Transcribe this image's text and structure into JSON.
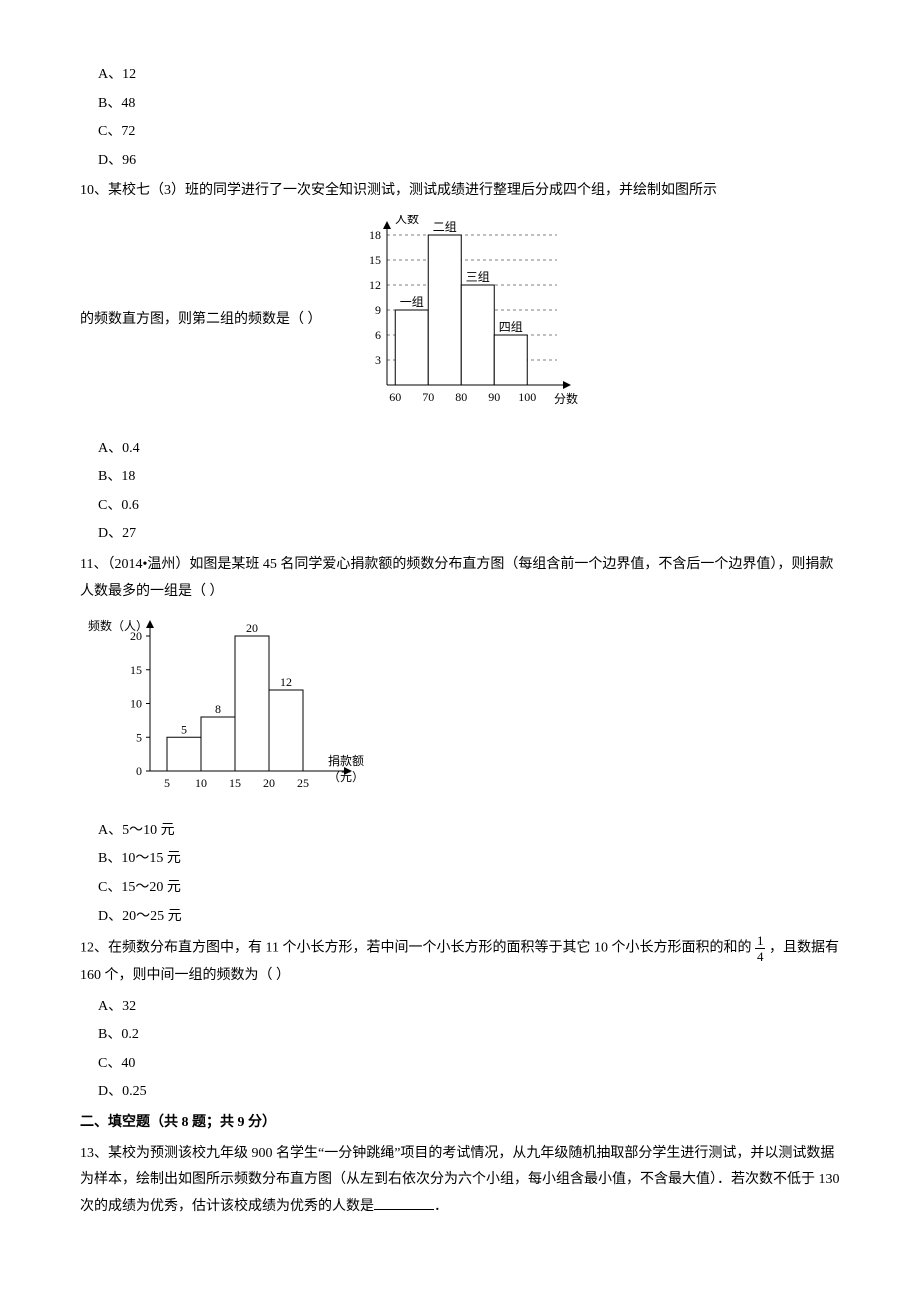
{
  "q9_options": {
    "a": "A、12",
    "b": "B、48",
    "c": "C、72",
    "d": "D、96"
  },
  "q10": {
    "stem1": "10、某校七（3）班的同学进行了一次安全知识测试，测试成绩进行整理后分成四个组，并绘制如图所示",
    "stem2": "的频数直方图，则第二组的频数是（      ）",
    "options": {
      "a": "A、0.4",
      "b": "B、18",
      "c": "C、0.6",
      "d": "D、27"
    },
    "chart": {
      "type": "bar",
      "ylabel": "人数",
      "xlabel": "分数",
      "xticks": [
        "60",
        "70",
        "80",
        "90",
        "100"
      ],
      "yticks": [
        3,
        6,
        9,
        12,
        15,
        18
      ],
      "bars": [
        {
          "label": "一组",
          "x": 60,
          "value": 9
        },
        {
          "label": "二组",
          "x": 70,
          "value": 18
        },
        {
          "label": "三组",
          "x": 80,
          "value": 12
        },
        {
          "label": "四组",
          "x": 90,
          "value": 6
        }
      ],
      "bar_fill": "#ffffff",
      "bar_stroke": "#000000",
      "grid_dash": "3,3",
      "text_color": "#000000",
      "font_size": 12
    }
  },
  "q11": {
    "stem": "11、（2014•温州）如图是某班 45 名同学爱心捐款额的频数分布直方图（每组含前一个边界值，不含后一个边界值），则捐款人数最多的一组是（      ）",
    "options": {
      "a": "A、5～10 元",
      "b": "B、10～15 元",
      "c": "C、15～20 元",
      "d": "D、20～25 元"
    },
    "chart": {
      "type": "bar",
      "ylabel": "频数（人）",
      "xlabel_lines": [
        "捐款额",
        "（元）"
      ],
      "xticks": [
        "5",
        "10",
        "15",
        "20",
        "25"
      ],
      "yticks": [
        0,
        5,
        10,
        15,
        20
      ],
      "bars": [
        {
          "label": "5",
          "x": 5,
          "value": 5
        },
        {
          "label": "8",
          "x": 10,
          "value": 8
        },
        {
          "label": "20",
          "x": 15,
          "value": 20
        },
        {
          "label": "12",
          "x": 20,
          "value": 12
        }
      ],
      "bar_fill": "#ffffff",
      "bar_stroke": "#000000",
      "text_color": "#000000",
      "font_size": 12
    }
  },
  "q12": {
    "stem_part1": "12、在频数分布直方图中，有 11 个小长方形，若中间一个小长方形的面积等于其它 10 个小长方形面积的和的",
    "frac_num": "1",
    "frac_den": "4",
    "stem_part2": "，且数据有 160 个，则中间一组的频数为（      ）",
    "options": {
      "a": "A、32",
      "b": "B、0.2",
      "c": "C、40",
      "d": "D、0.25"
    }
  },
  "section2": "二、填空题（共 8 题；共 9 分）",
  "q13": {
    "stem": "13、某校为预测该校九年级 900 名学生“一分钟跳绳”项目的考试情况，从九年级随机抽取部分学生进行测试，并以测试数据为样本，绘制出如图所示频数分布直方图（从左到右依次分为六个小组，每小组含最小值，不含最大值）．若次数不低于 130 次的成绩为优秀，估计该校成绩为优秀的人数是",
    "suffix": "．"
  }
}
